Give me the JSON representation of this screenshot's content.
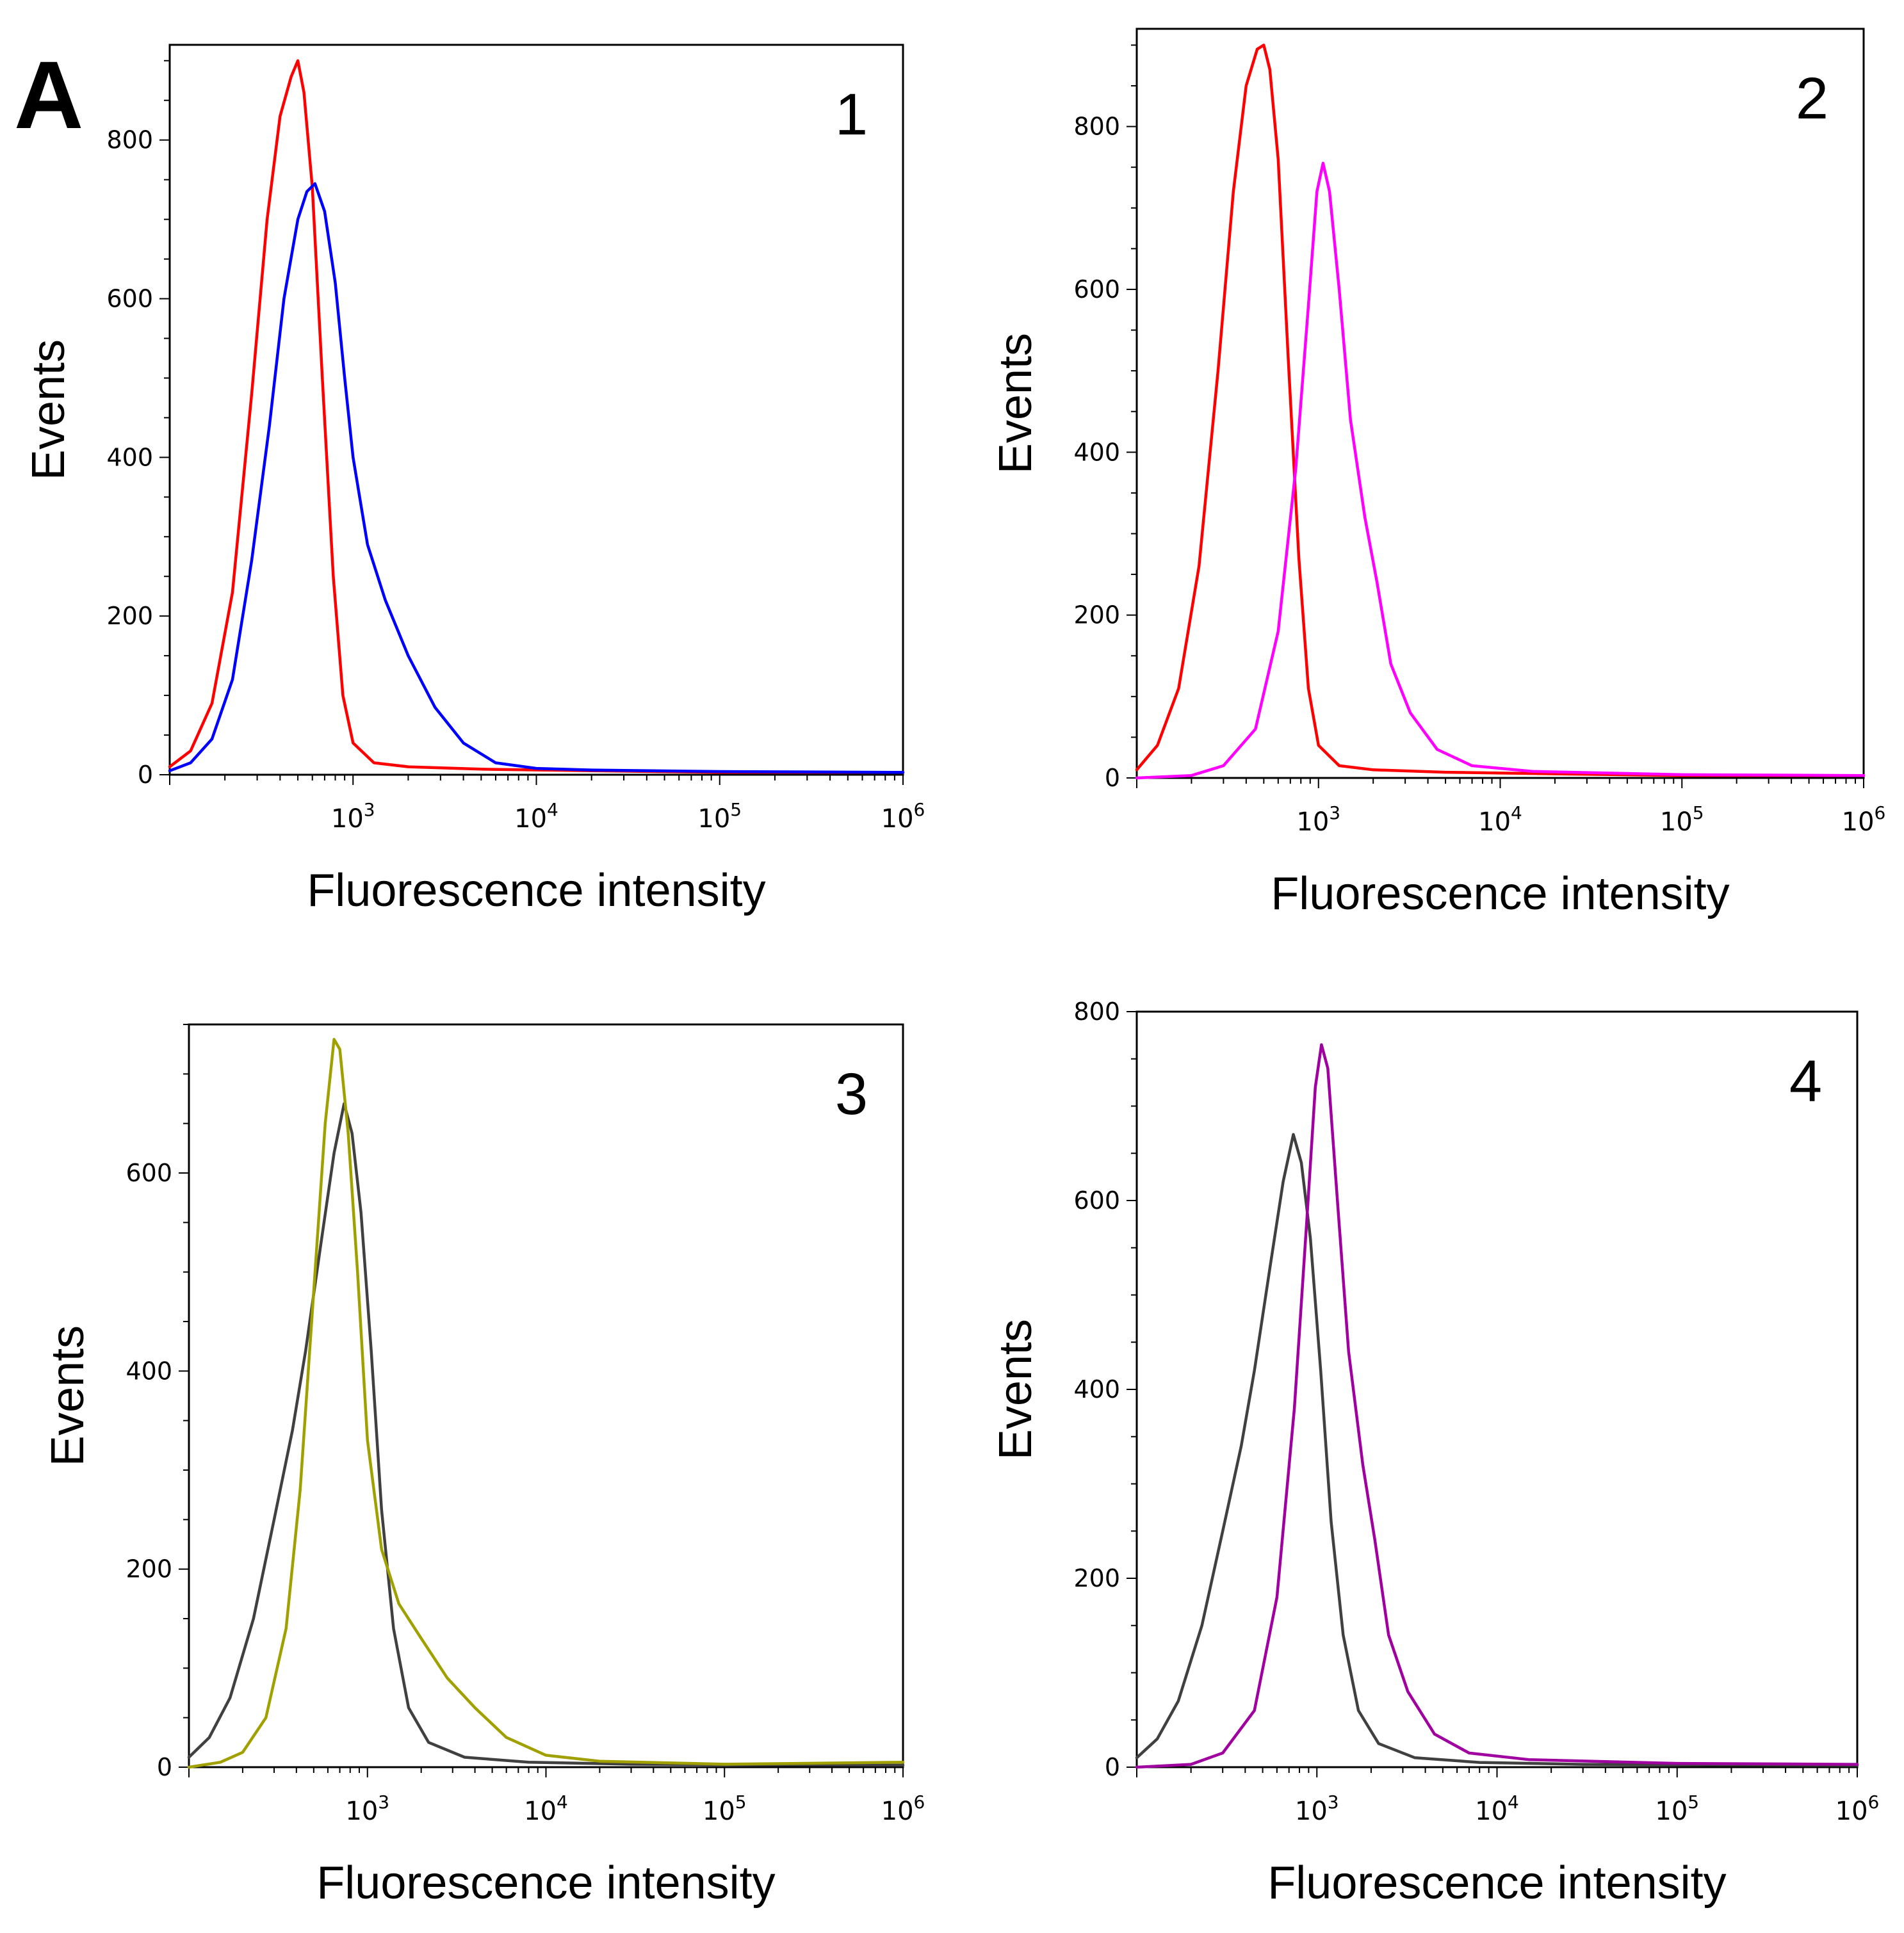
{
  "figure": {
    "panel_letter": "A"
  },
  "chart_data": [
    {
      "type": "line",
      "panel_label": "1",
      "xlabel": "Fluorescence intensity",
      "ylabel": "Events",
      "x_scale": "log",
      "xlim": [
        100,
        1000000
      ],
      "ylim": [
        0,
        920
      ],
      "x_ticks": [
        1000,
        10000,
        100000,
        1000000
      ],
      "x_tick_labels": [
        "10^3",
        "10^4",
        "10^5",
        "10^6"
      ],
      "y_ticks": [
        0,
        200,
        400,
        600,
        800
      ],
      "y_tick_labels": [
        "0",
        "200",
        "400",
        "600",
        "800"
      ],
      "grid": false,
      "legend": "none",
      "series": [
        {
          "color": "#ff0000",
          "points": [
            [
              100,
              10
            ],
            [
              130,
              30
            ],
            [
              170,
              90
            ],
            [
              220,
              230
            ],
            [
              280,
              480
            ],
            [
              340,
              700
            ],
            [
              400,
              830
            ],
            [
              460,
              880
            ],
            [
              500,
              900
            ],
            [
              540,
              860
            ],
            [
              600,
              740
            ],
            [
              680,
              500
            ],
            [
              780,
              250
            ],
            [
              880,
              100
            ],
            [
              1000,
              40
            ],
            [
              1300,
              15
            ],
            [
              2000,
              10
            ],
            [
              5000,
              7
            ],
            [
              20000,
              5
            ],
            [
              100000,
              3
            ],
            [
              1000000,
              3
            ]
          ]
        },
        {
          "color": "#0000ff",
          "points": [
            [
              100,
              5
            ],
            [
              130,
              15
            ],
            [
              170,
              45
            ],
            [
              220,
              120
            ],
            [
              280,
              270
            ],
            [
              350,
              440
            ],
            [
              420,
              600
            ],
            [
              500,
              700
            ],
            [
              560,
              735
            ],
            [
              620,
              745
            ],
            [
              700,
              710
            ],
            [
              800,
              620
            ],
            [
              900,
              500
            ],
            [
              1000,
              400
            ],
            [
              1200,
              290
            ],
            [
              1500,
              220
            ],
            [
              2000,
              150
            ],
            [
              2800,
              85
            ],
            [
              4000,
              40
            ],
            [
              6000,
              15
            ],
            [
              10000,
              8
            ],
            [
              20000,
              6
            ],
            [
              100000,
              4
            ],
            [
              1000000,
              3
            ]
          ]
        }
      ]
    },
    {
      "type": "line",
      "panel_label": "2",
      "xlabel": "Fluorescence intensity",
      "ylabel": "Events",
      "x_scale": "log",
      "xlim": [
        100,
        1000000
      ],
      "ylim": [
        0,
        920
      ],
      "x_ticks": [
        1000,
        10000,
        100000,
        1000000
      ],
      "x_tick_labels": [
        "10^3",
        "10^4",
        "10^5",
        "10^6"
      ],
      "y_ticks": [
        0,
        200,
        400,
        600,
        800
      ],
      "y_tick_labels": [
        "0",
        "200",
        "400",
        "600",
        "800"
      ],
      "grid": false,
      "legend": "none",
      "series": [
        {
          "color": "#ff0000",
          "points": [
            [
              100,
              10
            ],
            [
              130,
              40
            ],
            [
              170,
              110
            ],
            [
              220,
              260
            ],
            [
              280,
              500
            ],
            [
              340,
              720
            ],
            [
              400,
              850
            ],
            [
              460,
              895
            ],
            [
              500,
              900
            ],
            [
              540,
              870
            ],
            [
              600,
              760
            ],
            [
              680,
              520
            ],
            [
              780,
              270
            ],
            [
              880,
              110
            ],
            [
              1000,
              40
            ],
            [
              1300,
              15
            ],
            [
              2000,
              10
            ],
            [
              5000,
              7
            ],
            [
              20000,
              5
            ],
            [
              100000,
              3
            ],
            [
              1000000,
              3
            ]
          ]
        },
        {
          "color": "#ff00ff",
          "points": [
            [
              100,
              0
            ],
            [
              200,
              3
            ],
            [
              300,
              15
            ],
            [
              450,
              60
            ],
            [
              600,
              180
            ],
            [
              750,
              380
            ],
            [
              880,
              580
            ],
            [
              980,
              720
            ],
            [
              1060,
              755
            ],
            [
              1150,
              720
            ],
            [
              1300,
              600
            ],
            [
              1500,
              440
            ],
            [
              1800,
              320
            ],
            [
              2100,
              240
            ],
            [
              2500,
              140
            ],
            [
              3200,
              80
            ],
            [
              4500,
              35
            ],
            [
              7000,
              15
            ],
            [
              15000,
              8
            ],
            [
              100000,
              4
            ],
            [
              1000000,
              3
            ]
          ]
        }
      ]
    },
    {
      "type": "line",
      "panel_label": "3",
      "xlabel": "Fluorescence intensity",
      "ylabel": "Events",
      "x_scale": "log",
      "xlim": [
        100,
        1000000
      ],
      "ylim": [
        0,
        750
      ],
      "x_ticks": [
        1000,
        10000,
        100000,
        1000000
      ],
      "x_tick_labels": [
        "10^3",
        "10^4",
        "10^5",
        "10^6"
      ],
      "y_ticks": [
        0,
        200,
        400,
        600
      ],
      "y_tick_labels": [
        "0",
        "200",
        "400",
        "600"
      ],
      "grid": false,
      "legend": "none",
      "series": [
        {
          "color": "#404040",
          "points": [
            [
              100,
              10
            ],
            [
              130,
              30
            ],
            [
              170,
              70
            ],
            [
              230,
              150
            ],
            [
              300,
              250
            ],
            [
              380,
              340
            ],
            [
              450,
              420
            ],
            [
              550,
              530
            ],
            [
              650,
              620
            ],
            [
              740,
              670
            ],
            [
              820,
              640
            ],
            [
              920,
              560
            ],
            [
              1050,
              420
            ],
            [
              1200,
              260
            ],
            [
              1400,
              140
            ],
            [
              1700,
              60
            ],
            [
              2200,
              25
            ],
            [
              3500,
              10
            ],
            [
              8000,
              5
            ],
            [
              30000,
              3
            ],
            [
              1000000,
              2
            ]
          ]
        },
        {
          "color": "#a0a000",
          "points": [
            [
              100,
              0
            ],
            [
              150,
              5
            ],
            [
              200,
              15
            ],
            [
              270,
              50
            ],
            [
              350,
              140
            ],
            [
              420,
              280
            ],
            [
              500,
              480
            ],
            [
              580,
              650
            ],
            [
              650,
              735
            ],
            [
              700,
              725
            ],
            [
              780,
              640
            ],
            [
              880,
              500
            ],
            [
              1000,
              330
            ],
            [
              1200,
              220
            ],
            [
              1500,
              165
            ],
            [
              2000,
              130
            ],
            [
              2800,
              90
            ],
            [
              4000,
              60
            ],
            [
              6000,
              30
            ],
            [
              10000,
              12
            ],
            [
              20000,
              6
            ],
            [
              100000,
              3
            ],
            [
              1000000,
              5
            ]
          ]
        }
      ]
    },
    {
      "type": "line",
      "panel_label": "4",
      "xlabel": "Fluorescence intensity",
      "ylabel": "Events",
      "x_scale": "log",
      "xlim": [
        100,
        1000000
      ],
      "ylim": [
        0,
        800
      ],
      "x_ticks": [
        1000,
        10000,
        100000,
        1000000
      ],
      "x_tick_labels": [
        "10^3",
        "10^4",
        "10^5",
        "10^6"
      ],
      "y_ticks": [
        0,
        200,
        400,
        600,
        800
      ],
      "y_tick_labels": [
        "0",
        "200",
        "400",
        "600",
        "800"
      ],
      "grid": false,
      "legend": "none",
      "series": [
        {
          "color": "#404040",
          "points": [
            [
              100,
              10
            ],
            [
              130,
              30
            ],
            [
              170,
              70
            ],
            [
              230,
              150
            ],
            [
              300,
              250
            ],
            [
              380,
              340
            ],
            [
              450,
              420
            ],
            [
              550,
              530
            ],
            [
              650,
              620
            ],
            [
              740,
              670
            ],
            [
              820,
              640
            ],
            [
              920,
              560
            ],
            [
              1050,
              420
            ],
            [
              1200,
              260
            ],
            [
              1400,
              140
            ],
            [
              1700,
              60
            ],
            [
              2200,
              25
            ],
            [
              3500,
              10
            ],
            [
              8000,
              5
            ],
            [
              30000,
              3
            ],
            [
              1000000,
              2
            ]
          ]
        },
        {
          "color": "#a000a0",
          "points": [
            [
              100,
              0
            ],
            [
              200,
              3
            ],
            [
              300,
              15
            ],
            [
              450,
              60
            ],
            [
              600,
              180
            ],
            [
              750,
              380
            ],
            [
              880,
              580
            ],
            [
              980,
              720
            ],
            [
              1060,
              765
            ],
            [
              1150,
              740
            ],
            [
              1300,
              600
            ],
            [
              1500,
              440
            ],
            [
              1800,
              320
            ],
            [
              2100,
              240
            ],
            [
              2500,
              140
            ],
            [
              3200,
              80
            ],
            [
              4500,
              35
            ],
            [
              7000,
              15
            ],
            [
              15000,
              8
            ],
            [
              100000,
              4
            ],
            [
              1000000,
              3
            ]
          ]
        }
      ]
    }
  ]
}
